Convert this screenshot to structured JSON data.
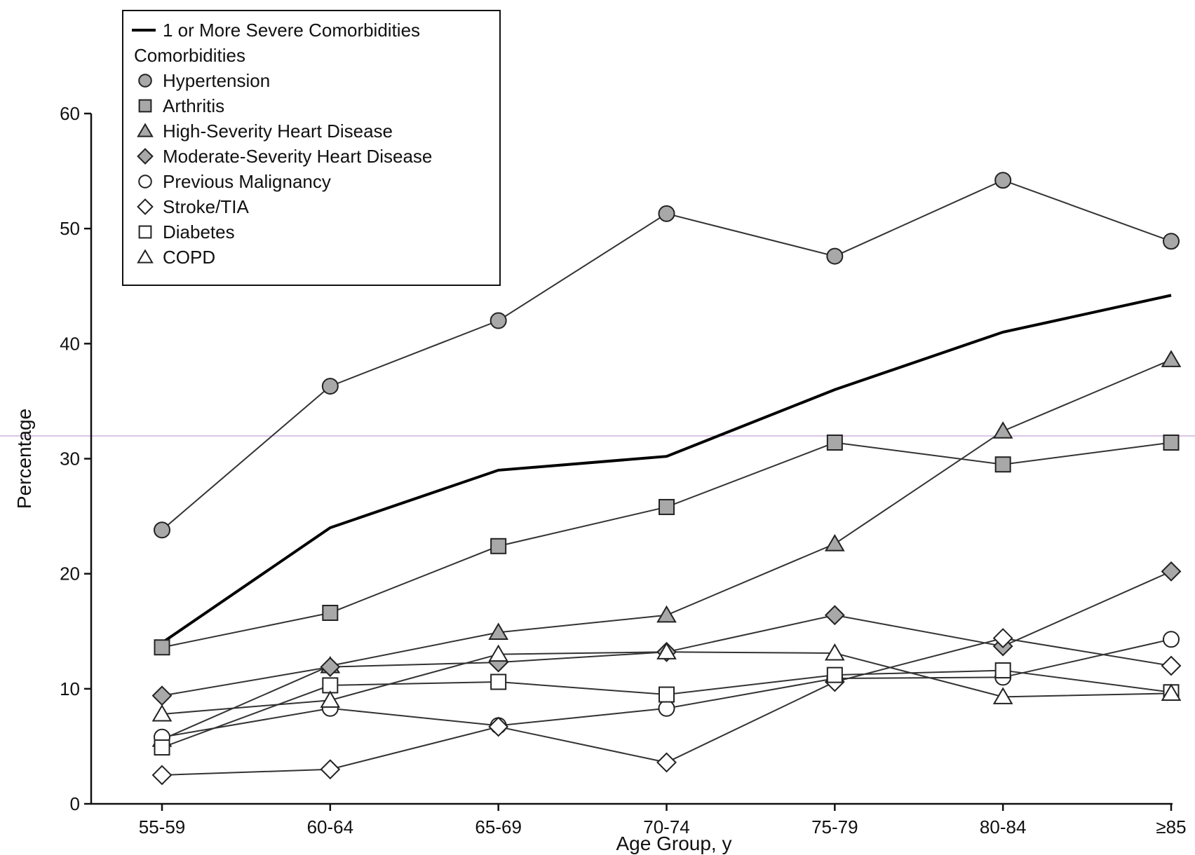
{
  "chart_data": {
    "type": "line",
    "xlabel": "Age Group, y",
    "ylabel": "Percentage",
    "ylim": [
      0,
      60
    ],
    "yticks": [
      0,
      10,
      20,
      30,
      40,
      50,
      60
    ],
    "grid": false,
    "legend_position": "top-left",
    "categories": [
      "55-59",
      "60-64",
      "65-69",
      "70-74",
      "75-79",
      "80-84",
      "≥85"
    ],
    "legend_subtitle": "Comorbidities",
    "series": [
      {
        "name": "1 or More Severe Comorbidities",
        "marker": "none",
        "fill": "none",
        "bold": true,
        "values": [
          14,
          24,
          29,
          30.2,
          36,
          41,
          44.2
        ]
      },
      {
        "name": "Hypertension",
        "marker": "circle",
        "fill": "gray",
        "values": [
          23.8,
          36.3,
          42,
          51.3,
          47.6,
          54.2,
          48.9
        ]
      },
      {
        "name": "Arthritis",
        "marker": "square",
        "fill": "gray",
        "values": [
          13.6,
          16.6,
          22.4,
          25.8,
          31.4,
          29.5,
          31.4
        ]
      },
      {
        "name": "High-Severity Heart Disease",
        "marker": "triangle",
        "fill": "gray",
        "values": [
          5.6,
          12,
          14.9,
          16.4,
          22.6,
          32.4,
          38.6
        ]
      },
      {
        "name": "Moderate-Severity Heart Disease",
        "marker": "diamond",
        "fill": "gray",
        "values": [
          9.4,
          11.9,
          12.3,
          13.2,
          16.4,
          13.7,
          20.2
        ]
      },
      {
        "name": "Previous Malignancy",
        "marker": "circle",
        "fill": "white",
        "values": [
          5.8,
          8.3,
          6.8,
          8.3,
          10.9,
          11,
          14.3
        ]
      },
      {
        "name": "Stroke/TIA",
        "marker": "diamond",
        "fill": "white",
        "values": [
          2.5,
          3,
          6.7,
          3.6,
          10.6,
          14.4,
          12
        ]
      },
      {
        "name": "Diabetes",
        "marker": "square",
        "fill": "white",
        "values": [
          4.9,
          10.3,
          10.6,
          9.5,
          11.2,
          11.6,
          9.7
        ]
      },
      {
        "name": "COPD",
        "marker": "triangle",
        "fill": "white",
        "values": [
          7.8,
          9,
          13,
          13.2,
          13.1,
          9.3,
          9.6
        ]
      }
    ],
    "colors": {
      "gray_marker": "#a8a8a8",
      "line": "#333333",
      "bold_line": "#000000",
      "reference_line": "#b48ccf"
    }
  }
}
